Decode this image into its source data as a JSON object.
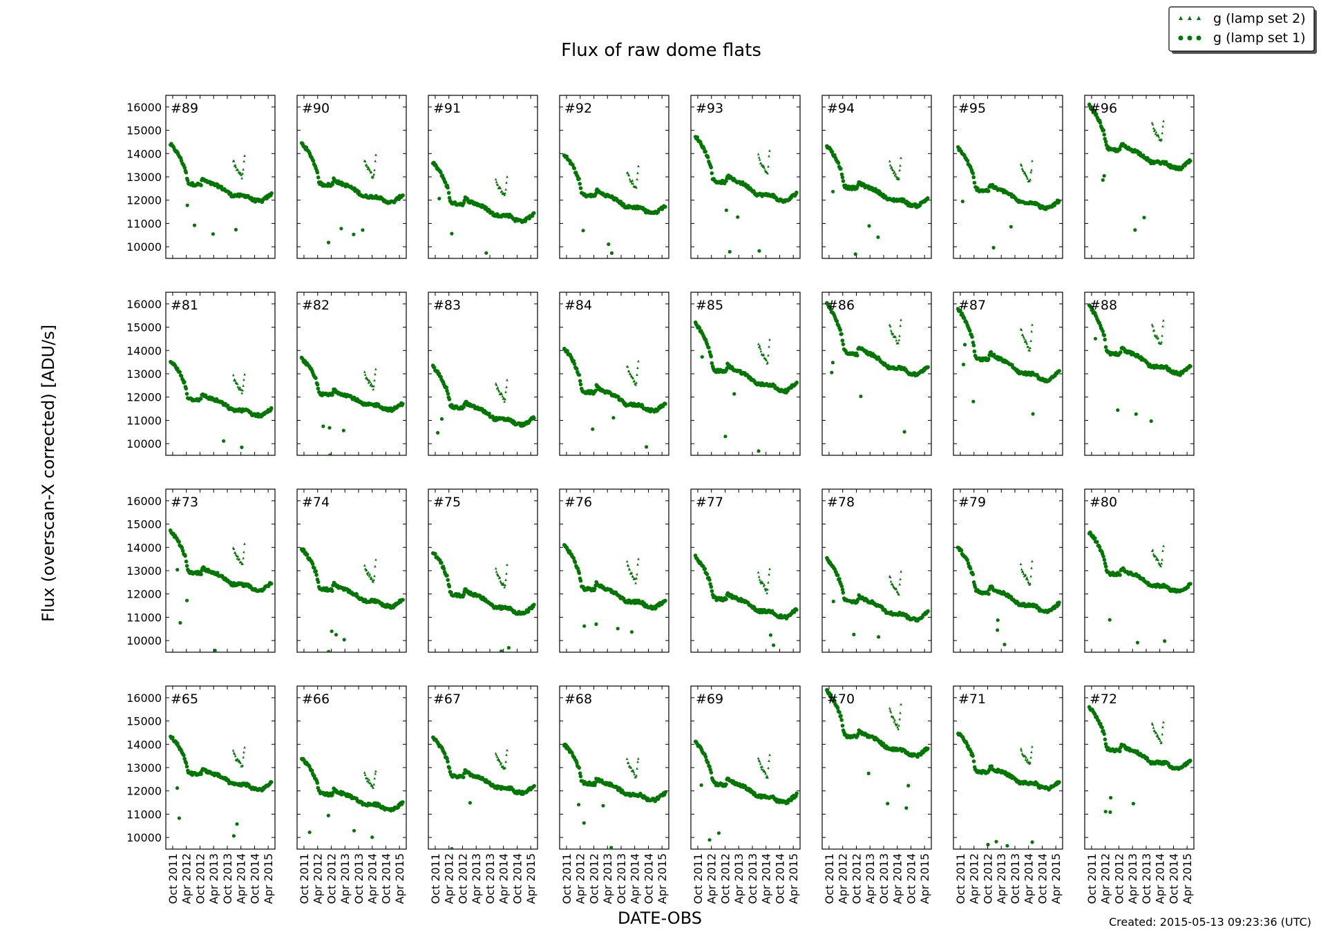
{
  "figure": {
    "title": "Flux of raw dome flats",
    "xlabel": "DATE-OBS",
    "ylabel": "Flux (overscan-X corrected) [ADU/s]",
    "created": "Created: 2015-05-13 09:23:36 (UTC)",
    "series_color": "#007700"
  },
  "chart_data": {
    "type": "scatter",
    "layout": {
      "rows": 4,
      "cols": 8
    },
    "xlim": [
      "2011-07-01",
      "2015-07-01"
    ],
    "ylim": [
      9500,
      16500
    ],
    "y_ticks": [
      10000,
      11000,
      12000,
      13000,
      14000,
      15000,
      16000
    ],
    "x_ticks": [
      {
        "date": "2011-10-01",
        "label": "Oct 2011"
      },
      {
        "date": "2012-04-01",
        "label": "Apr 2012"
      },
      {
        "date": "2012-10-01",
        "label": "Oct 2012"
      },
      {
        "date": "2013-04-01",
        "label": "Apr 2013"
      },
      {
        "date": "2013-10-01",
        "label": "Oct 2013"
      },
      {
        "date": "2014-04-01",
        "label": "Apr 2014"
      },
      {
        "date": "2014-10-01",
        "label": "Oct 2014"
      },
      {
        "date": "2015-04-01",
        "label": "Apr 2015"
      }
    ],
    "legend": {
      "placement": "top-right",
      "entries": [
        {
          "label": "g (lamp set 2)",
          "marker": "small-triangle"
        },
        {
          "label": "g (lamp set 1)",
          "marker": "circle"
        }
      ]
    },
    "trend_template": {
      "lamp_set_1": [
        [
          "2011-09-01",
          1.0
        ],
        [
          "2011-11-01",
          0.98
        ],
        [
          "2012-01-01",
          0.955
        ],
        [
          "2012-03-15",
          0.91
        ],
        [
          "2012-04-20",
          0.86
        ],
        [
          "2012-06-01",
          0.852
        ],
        [
          "2012-10-15",
          0.85
        ],
        [
          "2012-11-01",
          0.872
        ],
        [
          "2013-01-01",
          0.86
        ],
        [
          "2013-02-15",
          0.855
        ],
        [
          "2013-06-01",
          0.845
        ],
        [
          "2013-09-01",
          0.83
        ],
        [
          "2013-12-01",
          0.81
        ],
        [
          "2014-07-01",
          0.808
        ],
        [
          "2014-09-01",
          0.793
        ],
        [
          "2015-01-01",
          0.788
        ],
        [
          "2015-05-15",
          0.815
        ]
      ],
      "lamp_set_2": [
        [
          "2013-12-20",
          0.94
        ],
        [
          "2014-01-20",
          0.915
        ],
        [
          "2014-03-01",
          0.9
        ],
        [
          "2014-04-20",
          0.875
        ],
        [
          "2014-05-20",
          0.955
        ]
      ]
    },
    "panels": [
      {
        "label": "#89",
        "start": 14400,
        "end": 11950
      },
      {
        "label": "#90",
        "start": 14450,
        "end": 11900
      },
      {
        "label": "#91",
        "start": 13600,
        "end": 11100
      },
      {
        "label": "#92",
        "start": 13950,
        "end": 11450
      },
      {
        "label": "#93",
        "start": 14750,
        "end": 11950
      },
      {
        "label": "#94",
        "start": 14350,
        "end": 11750
      },
      {
        "label": "#95",
        "start": 14250,
        "end": 11650
      },
      {
        "label": "#96",
        "start": 16050,
        "end": 13350
      },
      {
        "label": "#81",
        "start": 13550,
        "end": 11200
      },
      {
        "label": "#82",
        "start": 13650,
        "end": 11450
      },
      {
        "label": "#83",
        "start": 13300,
        "end": 10800
      },
      {
        "label": "#84",
        "start": 14100,
        "end": 11400
      },
      {
        "label": "#85",
        "start": 15150,
        "end": 12250
      },
      {
        "label": "#86",
        "start": 16000,
        "end": 12950
      },
      {
        "label": "#87",
        "start": 15800,
        "end": 12700
      },
      {
        "label": "#88",
        "start": 15900,
        "end": 13000
      },
      {
        "label": "#73",
        "start": 14700,
        "end": 12150
      },
      {
        "label": "#74",
        "start": 13950,
        "end": 11450
      },
      {
        "label": "#75",
        "start": 13800,
        "end": 11150
      },
      {
        "label": "#76",
        "start": 14100,
        "end": 11400
      },
      {
        "label": "#77",
        "start": 13600,
        "end": 11000
      },
      {
        "label": "#78",
        "start": 13500,
        "end": 10900
      },
      {
        "label": "#79",
        "start": 14000,
        "end": 11250
      },
      {
        "label": "#80",
        "start": 14650,
        "end": 12100
      },
      {
        "label": "#65",
        "start": 14350,
        "end": 12050
      },
      {
        "label": "#66",
        "start": 13400,
        "end": 11200
      },
      {
        "label": "#67",
        "start": 14300,
        "end": 11900
      },
      {
        "label": "#68",
        "start": 14000,
        "end": 11600
      },
      {
        "label": "#69",
        "start": 14100,
        "end": 11500
      },
      {
        "label": "#70",
        "start": 16300,
        "end": 13500
      },
      {
        "label": "#71",
        "start": 14500,
        "end": 12100
      },
      {
        "label": "#72",
        "start": 15600,
        "end": 12950
      }
    ]
  }
}
